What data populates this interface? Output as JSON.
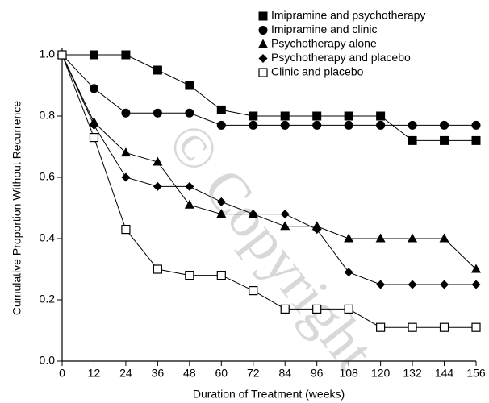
{
  "chart_data": {
    "type": "line",
    "watermark": "© Copyright",
    "x_label": "Duration of Treatment (weeks)",
    "y_label": "Cumulative Proportion Without Recurrence",
    "x": [
      0,
      12,
      24,
      36,
      48,
      60,
      72,
      84,
      96,
      108,
      120,
      132,
      144,
      156
    ],
    "xlim": [
      0,
      156
    ],
    "xticks": [
      0,
      12,
      24,
      36,
      48,
      60,
      72,
      84,
      96,
      108,
      120,
      132,
      144,
      156
    ],
    "ylim": [
      0,
      1
    ],
    "yticks": [
      {
        "value": 0,
        "label": "0.0"
      },
      {
        "value": 0.2,
        "label": "0.2"
      },
      {
        "value": 0.4,
        "label": "0.4"
      },
      {
        "value": 0.6,
        "label": "0.6"
      },
      {
        "value": 0.8,
        "label": "0.8"
      },
      {
        "value": 1,
        "label": "1.0"
      }
    ],
    "legend": "top-right",
    "series": [
      {
        "name": "Imipramine and psychotherapy",
        "color": "#000000",
        "marker": "square",
        "values": [
          1.0,
          1.0,
          1.0,
          0.95,
          0.9,
          0.82,
          0.8,
          0.8,
          0.8,
          0.8,
          0.8,
          0.72,
          0.72,
          0.72
        ]
      },
      {
        "name": "Imipramine and clinic",
        "color": "#000000",
        "marker": "circle",
        "values": [
          1.0,
          0.89,
          0.81,
          0.81,
          0.81,
          0.77,
          0.77,
          0.77,
          0.77,
          0.77,
          0.77,
          0.77,
          0.77,
          0.77
        ]
      },
      {
        "name": "Psychotherapy alone",
        "color": "#000000",
        "marker": "triangle",
        "values": [
          1.0,
          0.78,
          0.68,
          0.65,
          0.51,
          0.48,
          0.48,
          0.44,
          0.44,
          0.4,
          0.4,
          0.4,
          0.4,
          0.3
        ]
      },
      {
        "name": "Psychotherapy and placebo",
        "color": "#000000",
        "marker": "diamond",
        "values": [
          1.0,
          0.77,
          0.6,
          0.57,
          0.57,
          0.52,
          0.48,
          0.48,
          0.43,
          0.29,
          0.25,
          0.25,
          0.25,
          0.25
        ]
      },
      {
        "name": "Clinic and placebo",
        "color": "#000000",
        "marker": "open-square",
        "values": [
          1.0,
          0.73,
          0.43,
          0.3,
          0.28,
          0.28,
          0.23,
          0.17,
          0.17,
          0.17,
          0.11,
          0.11,
          0.11,
          0.11
        ]
      }
    ]
  }
}
